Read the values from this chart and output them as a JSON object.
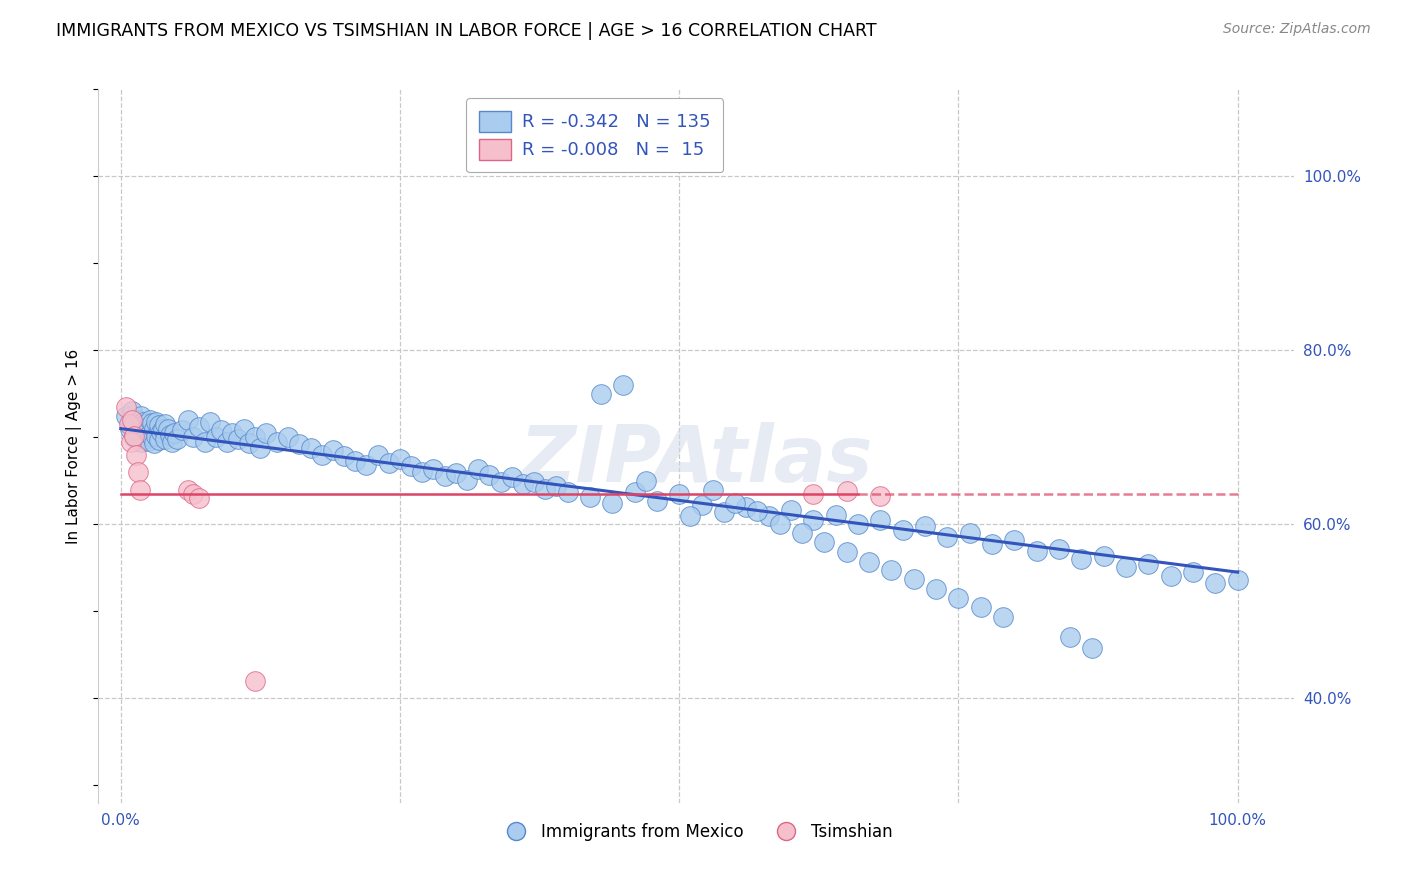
{
  "title": "IMMIGRANTS FROM MEXICO VS TSIMSHIAN IN LABOR FORCE | AGE > 16 CORRELATION CHART",
  "source": "Source: ZipAtlas.com",
  "ylabel": "In Labor Force | Age > 16",
  "xlim": [
    -0.02,
    1.05
  ],
  "ylim": [
    0.28,
    1.1
  ],
  "y_tick_positions_right": [
    0.4,
    0.6,
    0.8,
    1.0
  ],
  "background_color": "#ffffff",
  "grid_color": "#c8c8c8",
  "legend_R1": "-0.342",
  "legend_N1": "135",
  "legend_R2": "-0.008",
  "legend_N2": "15",
  "blue_color": "#aaccee",
  "blue_edge_color": "#5588cc",
  "pink_color": "#f5c0cc",
  "pink_edge_color": "#dd6688",
  "blue_line_color": "#3355bb",
  "pink_line_color": "#dd4466",
  "watermark": "ZIPAtlas",
  "blue_trend_y_start": 0.71,
  "blue_trend_y_end": 0.545,
  "pink_trend_y": 0.635,
  "mexico_x": [
    0.005,
    0.008,
    0.01,
    0.012,
    0.012,
    0.015,
    0.015,
    0.018,
    0.018,
    0.018,
    0.02,
    0.02,
    0.022,
    0.022,
    0.024,
    0.024,
    0.026,
    0.026,
    0.028,
    0.028,
    0.03,
    0.03,
    0.032,
    0.032,
    0.034,
    0.034,
    0.036,
    0.038,
    0.04,
    0.04,
    0.042,
    0.044,
    0.046,
    0.048,
    0.05,
    0.055,
    0.06,
    0.065,
    0.07,
    0.075,
    0.08,
    0.085,
    0.09,
    0.095,
    0.1,
    0.105,
    0.11,
    0.115,
    0.12,
    0.125,
    0.13,
    0.14,
    0.15,
    0.16,
    0.17,
    0.18,
    0.19,
    0.2,
    0.21,
    0.22,
    0.23,
    0.24,
    0.25,
    0.26,
    0.27,
    0.28,
    0.29,
    0.3,
    0.31,
    0.32,
    0.33,
    0.34,
    0.35,
    0.36,
    0.37,
    0.38,
    0.39,
    0.4,
    0.42,
    0.44,
    0.46,
    0.48,
    0.5,
    0.52,
    0.54,
    0.56,
    0.58,
    0.6,
    0.62,
    0.64,
    0.66,
    0.68,
    0.7,
    0.72,
    0.74,
    0.76,
    0.78,
    0.8,
    0.82,
    0.84,
    0.86,
    0.88,
    0.9,
    0.92,
    0.94,
    0.96,
    0.98,
    1.0,
    0.43,
    0.45,
    0.47,
    0.51,
    0.53,
    0.55,
    0.57,
    0.59,
    0.61,
    0.63,
    0.65,
    0.67,
    0.69,
    0.71,
    0.73,
    0.75,
    0.77,
    0.79,
    0.85,
    0.87
  ],
  "mexico_y": [
    0.725,
    0.71,
    0.73,
    0.715,
    0.7,
    0.72,
    0.705,
    0.71,
    0.725,
    0.695,
    0.718,
    0.702,
    0.715,
    0.698,
    0.712,
    0.696,
    0.72,
    0.704,
    0.716,
    0.7,
    0.71,
    0.693,
    0.718,
    0.701,
    0.714,
    0.697,
    0.706,
    0.709,
    0.715,
    0.698,
    0.71,
    0.703,
    0.695,
    0.705,
    0.698,
    0.708,
    0.72,
    0.7,
    0.712,
    0.695,
    0.718,
    0.7,
    0.708,
    0.695,
    0.705,
    0.698,
    0.71,
    0.693,
    0.7,
    0.688,
    0.705,
    0.695,
    0.7,
    0.692,
    0.688,
    0.68,
    0.685,
    0.678,
    0.673,
    0.668,
    0.68,
    0.671,
    0.675,
    0.667,
    0.66,
    0.663,
    0.656,
    0.659,
    0.651,
    0.664,
    0.657,
    0.649,
    0.654,
    0.646,
    0.649,
    0.641,
    0.644,
    0.637,
    0.631,
    0.624,
    0.637,
    0.627,
    0.635,
    0.622,
    0.614,
    0.62,
    0.61,
    0.616,
    0.605,
    0.611,
    0.6,
    0.605,
    0.593,
    0.598,
    0.586,
    0.59,
    0.577,
    0.582,
    0.569,
    0.572,
    0.56,
    0.564,
    0.551,
    0.554,
    0.541,
    0.545,
    0.532,
    0.536,
    0.75,
    0.76,
    0.65,
    0.61,
    0.64,
    0.625,
    0.615,
    0.6,
    0.59,
    0.58,
    0.568,
    0.557,
    0.548,
    0.537,
    0.526,
    0.515,
    0.505,
    0.494,
    0.47,
    0.458
  ],
  "tsimshian_x": [
    0.005,
    0.007,
    0.009,
    0.01,
    0.012,
    0.014,
    0.015,
    0.017,
    0.06,
    0.065,
    0.07,
    0.12,
    0.62,
    0.65,
    0.68
  ],
  "tsimshian_y": [
    0.735,
    0.715,
    0.695,
    0.72,
    0.702,
    0.68,
    0.66,
    0.64,
    0.64,
    0.635,
    0.63,
    0.42,
    0.635,
    0.638,
    0.632
  ]
}
